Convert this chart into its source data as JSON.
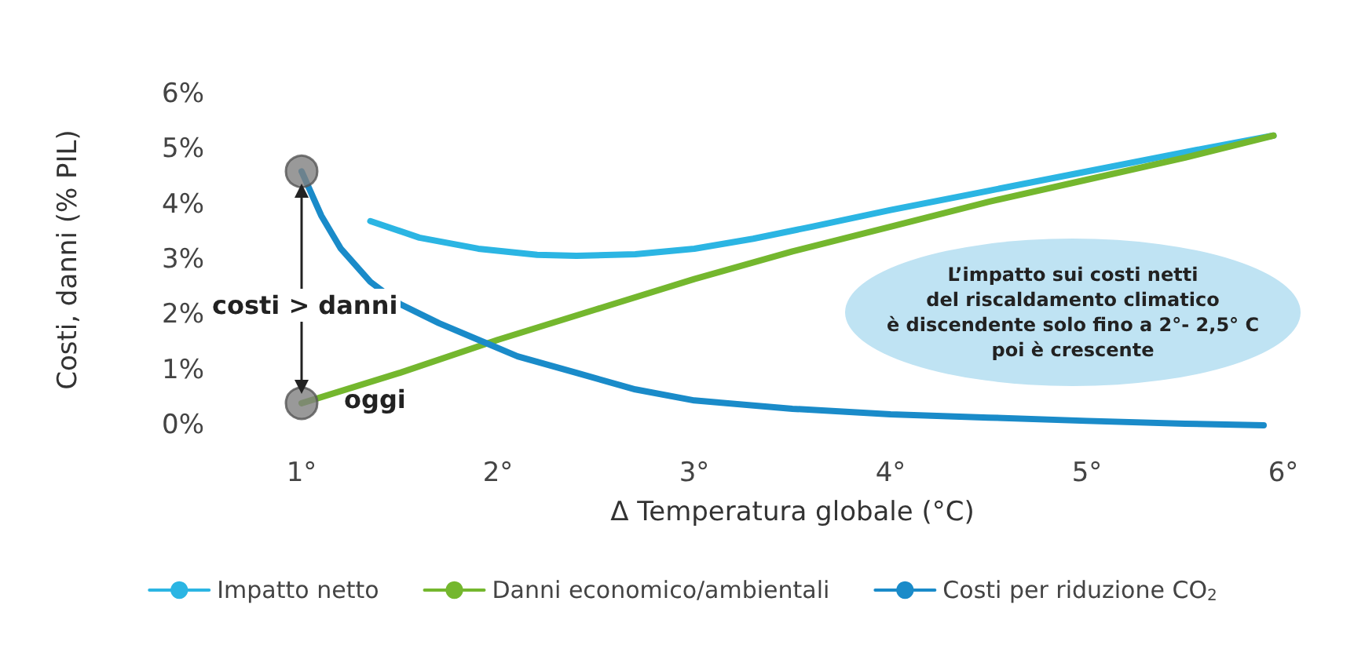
{
  "chart_data": {
    "type": "line",
    "xlabel": "Δ Temperatura globale (°C)",
    "ylabel": "Costi, danni (% PIL)",
    "xlim": [
      1,
      6
    ],
    "xticks": [
      {
        "value": 1,
        "label": "1°"
      },
      {
        "value": 2,
        "label": "2°"
      },
      {
        "value": 3,
        "label": "3°"
      },
      {
        "value": 4,
        "label": "4°"
      },
      {
        "value": 5,
        "label": "5°"
      },
      {
        "value": 6,
        "label": "6°"
      }
    ],
    "ylim": [
      0,
      6
    ],
    "yticks": [
      {
        "value": 0,
        "label": "0%"
      },
      {
        "value": 1,
        "label": "1%"
      },
      {
        "value": 2,
        "label": "2%"
      },
      {
        "value": 3,
        "label": "3%"
      },
      {
        "value": 4,
        "label": "4%"
      },
      {
        "value": 5,
        "label": "5%"
      },
      {
        "value": 6,
        "label": "6%"
      }
    ],
    "grid": false,
    "legend": "bottom",
    "marker": "none",
    "line_style": "solid",
    "series": [
      {
        "name": "Impatto netto",
        "color": "#2bb5e3",
        "x": [
          1.35,
          1.6,
          1.9,
          2.2,
          2.4,
          2.7,
          3,
          3.3,
          3.6,
          4,
          4.5,
          5,
          5.5,
          5.95
        ],
        "values": [
          3.7,
          3.4,
          3.2,
          3.09,
          3.07,
          3.1,
          3.2,
          3.38,
          3.6,
          3.9,
          4.25,
          4.6,
          4.95,
          5.25
        ]
      },
      {
        "name": "Danni economico/ambientali",
        "color": "#74b72e",
        "x": [
          1,
          1.5,
          2,
          2.5,
          3,
          3.5,
          4,
          4.5,
          5,
          5.5,
          5.95
        ],
        "values": [
          0.4,
          0.95,
          1.55,
          2.1,
          2.65,
          3.15,
          3.6,
          4.05,
          4.45,
          4.85,
          5.25
        ]
      },
      {
        "name": "Costi per riduzione CO$_{2}$",
        "color": "#1a8bc9",
        "x": [
          1,
          1.1,
          1.2,
          1.35,
          1.5,
          1.7,
          1.9,
          2.1,
          2.4,
          2.7,
          3,
          3.5,
          4,
          4.5,
          5,
          5.5,
          5.9
        ],
        "values": [
          4.6,
          3.8,
          3.2,
          2.6,
          2.2,
          1.85,
          1.55,
          1.25,
          0.95,
          0.65,
          0.45,
          0.3,
          0.2,
          0.14,
          0.08,
          0.03,
          0
        ]
      },
      {
        "type": "scatter",
        "marker": "circle",
        "color": "#808080",
        "x": [
          1,
          1
        ],
        "values": [
          4.6,
          0.4
        ]
      }
    ],
    "annotations": [
      "costi > danni",
      "oggi",
      "L’impatto sui costi netti\ndel riscaldamento climatico\nè discendente solo fino a 2°- 2,5° C\npoi è crescente"
    ]
  }
}
